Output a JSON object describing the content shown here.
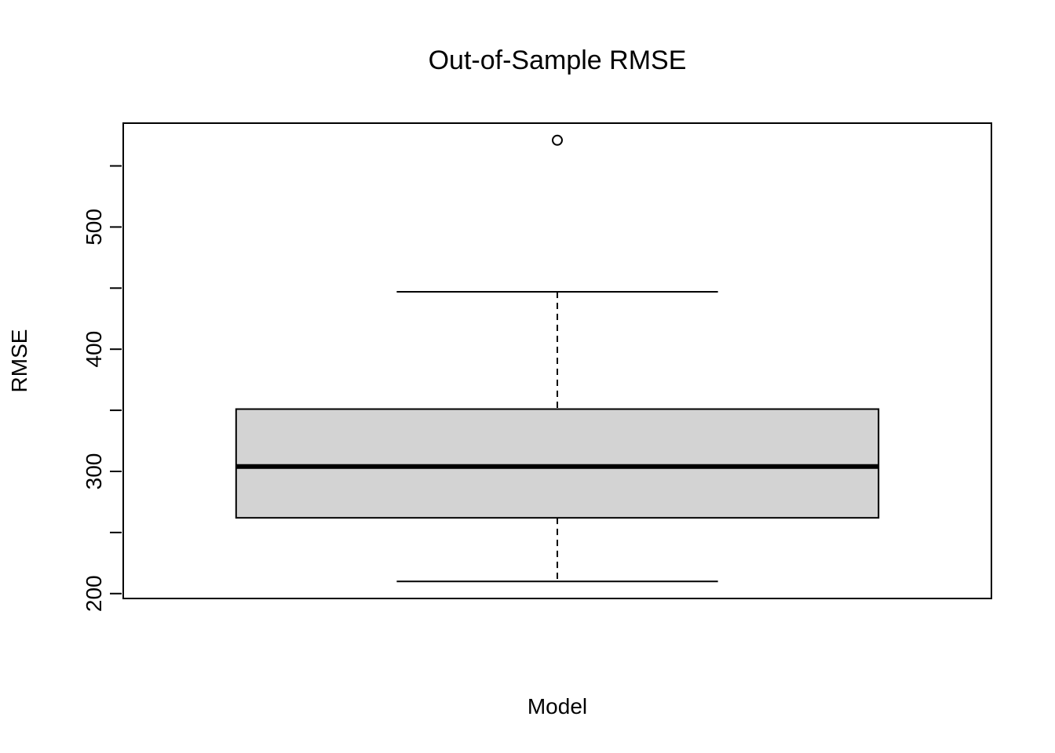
{
  "chart_data": {
    "type": "box",
    "title": "Out-of-Sample RMSE",
    "xlabel": "Model",
    "ylabel": "RMSE",
    "ylim": [
      196,
      585
    ],
    "yticks": [
      200,
      250,
      300,
      350,
      400,
      450,
      500,
      550
    ],
    "ytick_labels": [
      "200",
      "",
      "300",
      "",
      "400",
      "",
      "500",
      ""
    ],
    "boxes": [
      {
        "whisker_low": 210,
        "q1": 262,
        "median": 304,
        "q3": 351,
        "whisker_high": 447,
        "outliers": [
          571
        ]
      }
    ],
    "box_fill": "#d3d3d3",
    "stroke": "#000000",
    "grid": false
  }
}
